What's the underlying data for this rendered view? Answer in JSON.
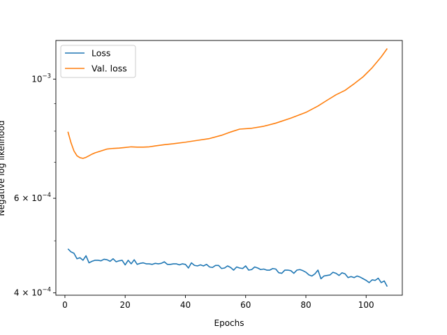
{
  "chart_data": {
    "type": "line",
    "xlabel": "Epochs",
    "ylabel": "Negative log likelihood",
    "xlim": [
      -3,
      112
    ],
    "ylim": [
      0.000396,
      0.00118
    ],
    "yscale": "log",
    "grid": false,
    "legend": "top-left",
    "x_ticks": [
      {
        "value": 0,
        "label": "0"
      },
      {
        "value": 20,
        "label": "20"
      },
      {
        "value": 40,
        "label": "40"
      },
      {
        "value": 60,
        "label": "60"
      },
      {
        "value": 80,
        "label": "80"
      },
      {
        "value": 100,
        "label": "100"
      }
    ],
    "y_major_ticks": [
      {
        "value": 0.0004,
        "base": "4 × 10",
        "exp": "−4"
      },
      {
        "value": 0.0006,
        "base": "6 × 10",
        "exp": "−4"
      },
      {
        "value": 0.001,
        "base": "10",
        "exp": "−3"
      }
    ],
    "y_minor_ticks": [
      0.0005,
      0.0007,
      0.0008,
      0.0009
    ],
    "series": [
      {
        "name": "Loss",
        "color": "#1f77b4",
        "x": [
          1,
          2,
          3,
          4,
          5,
          6,
          7,
          8,
          9,
          10,
          11,
          12,
          13,
          14,
          15,
          16,
          17,
          18,
          19,
          20,
          21,
          22,
          23,
          24,
          25,
          26,
          27,
          28,
          29,
          30,
          31,
          32,
          33,
          34,
          35,
          36,
          37,
          38,
          39,
          40,
          41,
          42,
          43,
          44,
          45,
          46,
          47,
          48,
          49,
          50,
          51,
          52,
          53,
          54,
          55,
          56,
          57,
          58,
          59,
          60,
          61,
          62,
          63,
          64,
          65,
          66,
          67,
          68,
          69,
          70,
          71,
          72,
          73,
          74,
          75,
          76,
          77,
          78,
          79,
          80,
          81,
          82,
          83,
          84,
          85,
          86,
          87,
          88,
          89,
          90,
          91,
          92,
          93,
          94,
          95,
          96,
          97,
          98,
          99,
          100,
          101,
          102,
          103,
          104,
          105,
          106,
          107
        ],
        "values": [
          0.000483,
          0.000477,
          0.000474,
          0.000463,
          0.000465,
          0.00046,
          0.000469,
          0.000455,
          0.000458,
          0.00046,
          0.00046,
          0.000459,
          0.000462,
          0.000461,
          0.000458,
          0.000463,
          0.000457,
          0.000459,
          0.00046,
          0.000451,
          0.00046,
          0.000453,
          0.000461,
          0.000452,
          0.000454,
          0.000455,
          0.000453,
          0.000453,
          0.000452,
          0.000454,
          0.000453,
          0.000454,
          0.000457,
          0.000452,
          0.000452,
          0.000453,
          0.000453,
          0.000451,
          0.000453,
          0.000452,
          0.000445,
          0.000455,
          0.00045,
          0.000449,
          0.000451,
          0.000449,
          0.000452,
          0.000447,
          0.000446,
          0.00045,
          0.00045,
          0.000444,
          0.000445,
          0.000449,
          0.000446,
          0.000441,
          0.000447,
          0.000445,
          0.000444,
          0.000449,
          0.000441,
          0.000442,
          0.000447,
          0.000445,
          0.000442,
          0.000443,
          0.000441,
          0.000441,
          0.000444,
          0.000443,
          0.000436,
          0.000435,
          0.000441,
          0.000441,
          0.00044,
          0.000435,
          0.000441,
          0.000442,
          0.00044,
          0.000437,
          0.000432,
          0.00043,
          0.000434,
          0.000441,
          0.000425,
          0.00043,
          0.000431,
          0.000432,
          0.000437,
          0.000435,
          0.000431,
          0.000436,
          0.000434,
          0.000427,
          0.000429,
          0.000427,
          0.00043,
          0.000428,
          0.000425,
          0.000422,
          0.000418,
          0.000423,
          0.000422,
          0.000426,
          0.000418,
          0.000421,
          0.000411
        ]
      },
      {
        "name": "Val. loss",
        "color": "#ff7f0e",
        "x": [
          1,
          2,
          3,
          4,
          5,
          6,
          7,
          8,
          9,
          10,
          12,
          14,
          16,
          18,
          20,
          22,
          24,
          26,
          28,
          30,
          33,
          36,
          40,
          44,
          48,
          52,
          55,
          58,
          62,
          66,
          70,
          75,
          80,
          84,
          87,
          90,
          93,
          96,
          99,
          102,
          105,
          107
        ],
        "values": [
          0.000798,
          0.000762,
          0.000735,
          0.00072,
          0.000714,
          0.000712,
          0.000715,
          0.00072,
          0.000725,
          0.000729,
          0.000735,
          0.000741,
          0.000743,
          0.000744,
          0.000746,
          0.000748,
          0.000747,
          0.000747,
          0.000748,
          0.000751,
          0.000755,
          0.000758,
          0.000763,
          0.000769,
          0.000775,
          0.000786,
          0.000797,
          0.000807,
          0.00081,
          0.000817,
          0.000828,
          0.000846,
          0.000867,
          0.000891,
          0.000913,
          0.000935,
          0.000953,
          0.00098,
          0.00101,
          0.00105,
          0.0011,
          0.00114
        ]
      }
    ]
  }
}
